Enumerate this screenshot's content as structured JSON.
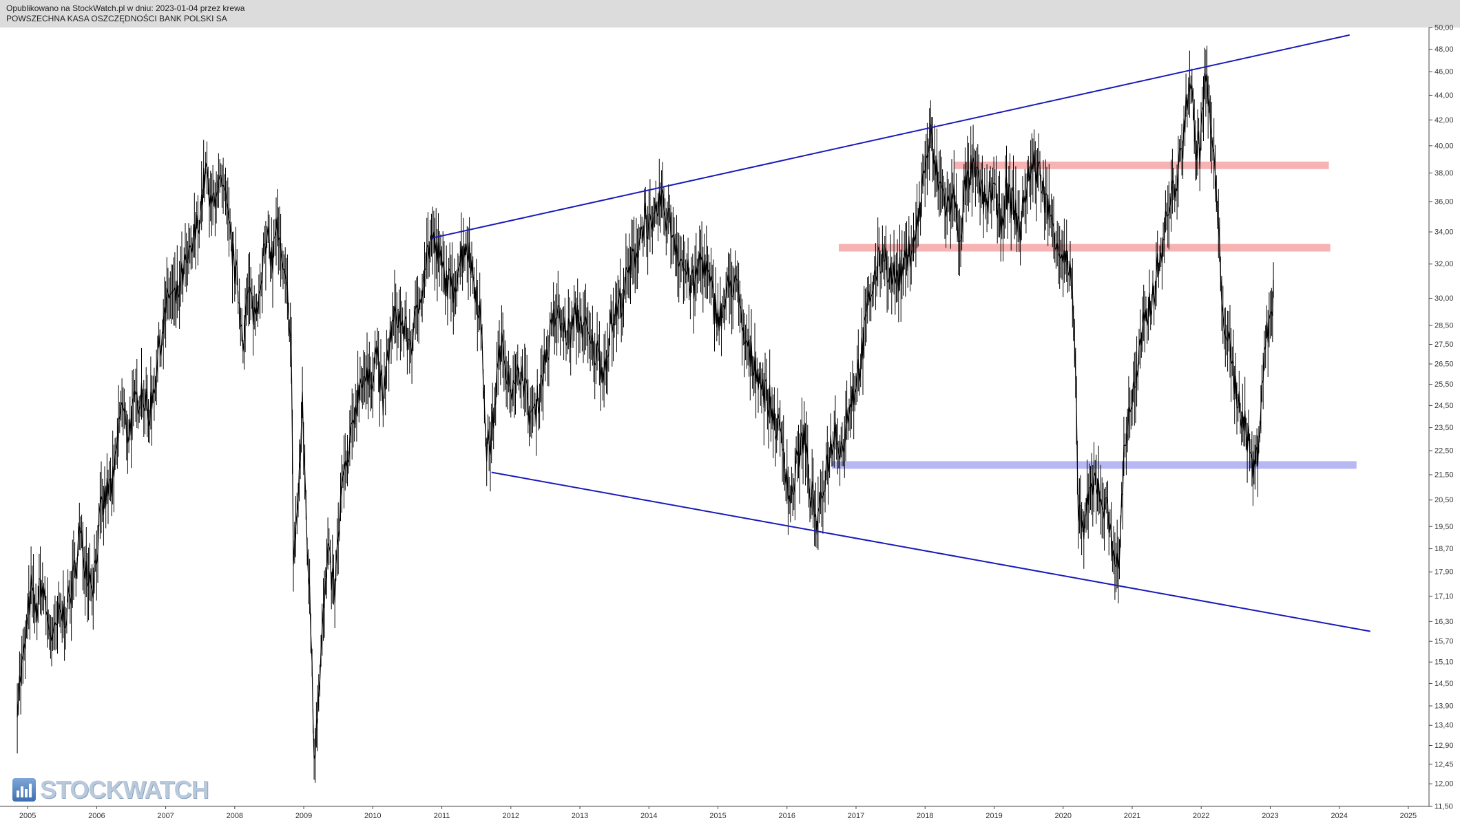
{
  "header": {
    "published": "Opublikowano na StockWatch.pl w dniu: 2023-01-04 przez krewa",
    "instrument": "POWSZECHNA KASA OSZCZĘDNOŚCI BANK POLSKI SA"
  },
  "logo": {
    "text": "STOCKWATCH"
  },
  "chart_data": {
    "type": "line",
    "scale": "log",
    "ylim": [
      11.5,
      50.0
    ],
    "xlim": [
      2004.6,
      2025.3
    ],
    "x_ticks": [
      "2005",
      "2006",
      "2007",
      "2008",
      "2009",
      "2010",
      "2011",
      "2012",
      "2013",
      "2014",
      "2015",
      "2016",
      "2017",
      "2018",
      "2019",
      "2020",
      "2021",
      "2022",
      "2023",
      "2024",
      "2025"
    ],
    "y_ticks": [
      "50,00",
      "48,00",
      "46,00",
      "44,00",
      "42,00",
      "40,00",
      "38,00",
      "36,00",
      "34,00",
      "32,00",
      "30,00",
      "28,50",
      "27,50",
      "26,50",
      "25,50",
      "24,50",
      "23,50",
      "22,50",
      "21,50",
      "20,50",
      "19,50",
      "18,70",
      "17,90",
      "17,10",
      "16,30",
      "15,70",
      "15,10",
      "14,50",
      "13,90",
      "13,40",
      "12,90",
      "12,45",
      "12,00",
      "11,50"
    ],
    "series": [
      {
        "color": "#000000",
        "points": [
          [
            2004.85,
            14.1
          ],
          [
            2004.95,
            15.3
          ],
          [
            2005.05,
            17.3
          ],
          [
            2005.12,
            16.5
          ],
          [
            2005.2,
            17.6
          ],
          [
            2005.3,
            16.2
          ],
          [
            2005.38,
            15.7
          ],
          [
            2005.45,
            16.4
          ],
          [
            2005.55,
            16.6
          ],
          [
            2005.65,
            17.4
          ],
          [
            2005.75,
            19.2
          ],
          [
            2005.85,
            18.1
          ],
          [
            2005.95,
            17.6
          ],
          [
            2006.05,
            19.8
          ],
          [
            2006.15,
            20.8
          ],
          [
            2006.25,
            21.2
          ],
          [
            2006.35,
            24.6
          ],
          [
            2006.45,
            23.3
          ],
          [
            2006.55,
            24.4
          ],
          [
            2006.65,
            25.4
          ],
          [
            2006.75,
            24.0
          ],
          [
            2006.85,
            25.9
          ],
          [
            2006.95,
            28.3
          ],
          [
            2007.05,
            30.3
          ],
          [
            2007.15,
            29.8
          ],
          [
            2007.25,
            31.4
          ],
          [
            2007.35,
            32.3
          ],
          [
            2007.45,
            34.2
          ],
          [
            2007.52,
            36.0
          ],
          [
            2007.58,
            38.4
          ],
          [
            2007.65,
            35.3
          ],
          [
            2007.75,
            37.4
          ],
          [
            2007.85,
            36.2
          ],
          [
            2007.95,
            33.2
          ],
          [
            2008.05,
            30.4
          ],
          [
            2008.12,
            28.0
          ],
          [
            2008.2,
            30.3
          ],
          [
            2008.3,
            29.0
          ],
          [
            2008.4,
            32.2
          ],
          [
            2008.5,
            33.4
          ],
          [
            2008.55,
            32.0
          ],
          [
            2008.6,
            34.7
          ],
          [
            2008.7,
            31.2
          ],
          [
            2008.78,
            29.8
          ],
          [
            2008.82,
            27.0
          ],
          [
            2008.85,
            18.5
          ],
          [
            2008.92,
            20.5
          ],
          [
            2008.98,
            24.4
          ],
          [
            2009.05,
            19.0
          ],
          [
            2009.12,
            15.2
          ],
          [
            2009.15,
            12.6
          ],
          [
            2009.2,
            14.0
          ],
          [
            2009.25,
            15.5
          ],
          [
            2009.35,
            18.4
          ],
          [
            2009.45,
            17.2
          ],
          [
            2009.55,
            21.0
          ],
          [
            2009.65,
            22.1
          ],
          [
            2009.75,
            24.6
          ],
          [
            2009.85,
            26.1
          ],
          [
            2009.95,
            25.4
          ],
          [
            2010.05,
            27.4
          ],
          [
            2010.15,
            24.6
          ],
          [
            2010.25,
            27.8
          ],
          [
            2010.35,
            29.2
          ],
          [
            2010.45,
            28.3
          ],
          [
            2010.55,
            27.5
          ],
          [
            2010.65,
            29.1
          ],
          [
            2010.75,
            32.0
          ],
          [
            2010.85,
            33.6
          ],
          [
            2010.95,
            32.4
          ],
          [
            2011.05,
            31.2
          ],
          [
            2011.15,
            30.4
          ],
          [
            2011.25,
            32.1
          ],
          [
            2011.35,
            33.5
          ],
          [
            2011.45,
            31.5
          ],
          [
            2011.55,
            29.4
          ],
          [
            2011.6,
            26.0
          ],
          [
            2011.65,
            22.6
          ],
          [
            2011.72,
            23.0
          ],
          [
            2011.78,
            25.2
          ],
          [
            2011.85,
            27.4
          ],
          [
            2011.95,
            26.4
          ],
          [
            2012.05,
            25.0
          ],
          [
            2012.15,
            26.5
          ],
          [
            2012.25,
            24.4
          ],
          [
            2012.35,
            24.0
          ],
          [
            2012.45,
            26.0
          ],
          [
            2012.55,
            27.5
          ],
          [
            2012.65,
            29.2
          ],
          [
            2012.75,
            28.4
          ],
          [
            2012.85,
            28.0
          ],
          [
            2012.95,
            29.0
          ],
          [
            2013.05,
            28.6
          ],
          [
            2013.15,
            27.4
          ],
          [
            2013.25,
            27.0
          ],
          [
            2013.35,
            26.3
          ],
          [
            2013.45,
            28.5
          ],
          [
            2013.55,
            29.4
          ],
          [
            2013.65,
            30.6
          ],
          [
            2013.75,
            32.0
          ],
          [
            2013.85,
            33.4
          ],
          [
            2013.95,
            35.1
          ],
          [
            2014.05,
            33.6
          ],
          [
            2014.15,
            36.1
          ],
          [
            2014.25,
            35.2
          ],
          [
            2014.35,
            34.0
          ],
          [
            2014.45,
            32.4
          ],
          [
            2014.55,
            31.4
          ],
          [
            2014.65,
            30.5
          ],
          [
            2014.75,
            32.5
          ],
          [
            2014.85,
            31.3
          ],
          [
            2014.95,
            29.6
          ],
          [
            2015.05,
            29.0
          ],
          [
            2015.15,
            30.5
          ],
          [
            2015.25,
            31.2
          ],
          [
            2015.35,
            28.2
          ],
          [
            2015.45,
            27.0
          ],
          [
            2015.55,
            26.4
          ],
          [
            2015.65,
            25.4
          ],
          [
            2015.75,
            24.6
          ],
          [
            2015.85,
            23.6
          ],
          [
            2015.95,
            22.6
          ],
          [
            2016.05,
            20.4
          ],
          [
            2016.15,
            22.1
          ],
          [
            2016.25,
            23.2
          ],
          [
            2016.3,
            21.6
          ],
          [
            2016.38,
            20.3
          ],
          [
            2016.45,
            19.4
          ],
          [
            2016.52,
            21.0
          ],
          [
            2016.6,
            22.3
          ],
          [
            2016.7,
            23.4
          ],
          [
            2016.8,
            22.6
          ],
          [
            2016.9,
            24.6
          ],
          [
            2017.0,
            25.6
          ],
          [
            2017.1,
            27.4
          ],
          [
            2017.2,
            30.2
          ],
          [
            2017.3,
            31.6
          ],
          [
            2017.4,
            32.8
          ],
          [
            2017.5,
            31.4
          ],
          [
            2017.6,
            31.2
          ],
          [
            2017.7,
            31.8
          ],
          [
            2017.8,
            33.2
          ],
          [
            2017.9,
            34.6
          ],
          [
            2018.0,
            38.6
          ],
          [
            2018.08,
            40.6
          ],
          [
            2018.14,
            38.4
          ],
          [
            2018.22,
            37.1
          ],
          [
            2018.32,
            35.6
          ],
          [
            2018.42,
            36.3
          ],
          [
            2018.5,
            33.7
          ],
          [
            2018.58,
            36.8
          ],
          [
            2018.68,
            38.3
          ],
          [
            2018.78,
            37.1
          ],
          [
            2018.88,
            35.8
          ],
          [
            2018.98,
            37.2
          ],
          [
            2019.08,
            34.7
          ],
          [
            2019.18,
            36.5
          ],
          [
            2019.28,
            35.9
          ],
          [
            2019.38,
            34.1
          ],
          [
            2019.48,
            37.5
          ],
          [
            2019.58,
            38.6
          ],
          [
            2019.68,
            37.6
          ],
          [
            2019.78,
            35.5
          ],
          [
            2019.88,
            34.2
          ],
          [
            2019.95,
            33.0
          ],
          [
            2020.05,
            32.1
          ],
          [
            2020.12,
            30.8
          ],
          [
            2020.15,
            28.7
          ],
          [
            2020.18,
            25.3
          ],
          [
            2020.22,
            20.4
          ],
          [
            2020.3,
            19.3
          ],
          [
            2020.38,
            20.6
          ],
          [
            2020.48,
            21.4
          ],
          [
            2020.58,
            20.4
          ],
          [
            2020.68,
            19.6
          ],
          [
            2020.75,
            18.6
          ],
          [
            2020.8,
            17.7
          ],
          [
            2020.88,
            22.3
          ],
          [
            2020.95,
            24.2
          ],
          [
            2021.05,
            25.4
          ],
          [
            2021.15,
            28.0
          ],
          [
            2021.25,
            29.6
          ],
          [
            2021.35,
            31.2
          ],
          [
            2021.45,
            33.6
          ],
          [
            2021.55,
            35.9
          ],
          [
            2021.65,
            37.8
          ],
          [
            2021.72,
            39.0
          ],
          [
            2021.78,
            43.5
          ],
          [
            2021.85,
            45.3
          ],
          [
            2021.9,
            40.8
          ],
          [
            2021.98,
            39.6
          ],
          [
            2022.05,
            45.6
          ],
          [
            2022.1,
            44.0
          ],
          [
            2022.15,
            40.5
          ],
          [
            2022.22,
            36.8
          ],
          [
            2022.28,
            31.2
          ],
          [
            2022.35,
            28.5
          ],
          [
            2022.45,
            26.2
          ],
          [
            2022.55,
            24.6
          ],
          [
            2022.65,
            23.6
          ],
          [
            2022.72,
            22.1
          ],
          [
            2022.78,
            21.7
          ],
          [
            2022.82,
            22.6
          ],
          [
            2022.88,
            25.5
          ],
          [
            2022.95,
            27.9
          ],
          [
            2023.02,
            29.4
          ],
          [
            2023.06,
            31.3
          ]
        ]
      }
    ],
    "trendlines": [
      {
        "color": "#1a1ab8",
        "from": [
          2010.85,
          33.6
        ],
        "to": [
          2024.15,
          49.3
        ]
      },
      {
        "color": "#1a1ab8",
        "from": [
          2011.72,
          21.6
        ],
        "to": [
          2024.45,
          16.0
        ]
      }
    ],
    "horizontal_zones": [
      {
        "color": "#f7b3b3",
        "y": 38.55,
        "x_from": 2018.42,
        "x_to": 2023.85
      },
      {
        "color": "#f7b3b3",
        "y": 33.0,
        "x_from": 2016.75,
        "x_to": 2023.87
      },
      {
        "color": "#b7b7f4",
        "y": 21.9,
        "x_from": 2016.65,
        "x_to": 2024.25
      }
    ]
  }
}
